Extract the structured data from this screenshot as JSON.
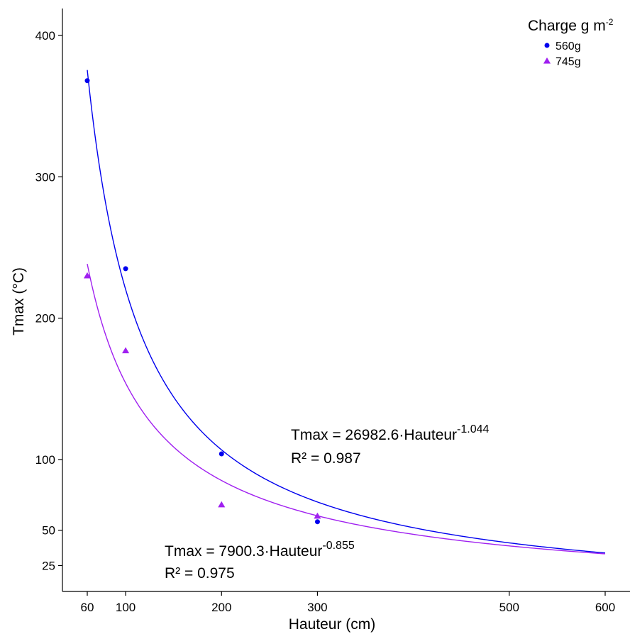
{
  "chart_data": {
    "type": "scatter",
    "title": "",
    "xlabel": "Hauteur (cm)",
    "ylabel": "Tmax (°C)",
    "xlim": [
      55,
      615
    ],
    "ylim": [
      10,
      420
    ],
    "x_ticks": [
      60,
      100,
      200,
      300,
      500,
      600
    ],
    "y_ticks": [
      25,
      50,
      100,
      200,
      300,
      400
    ],
    "grid": false,
    "legend": {
      "title_base": "Charge g m",
      "title_exp": "-2",
      "placement": "top-right"
    },
    "series": [
      {
        "name": "560g",
        "color": "#0000ee",
        "marker": "circle",
        "x": [
          60,
          100,
          200,
          300
        ],
        "y": [
          368,
          235,
          104,
          56
        ],
        "fit": {
          "a": 26982.6,
          "b": -1.044,
          "x_range": [
            60,
            600
          ]
        }
      },
      {
        "name": "745g",
        "color": "#a020f0",
        "marker": "triangle",
        "x": [
          60,
          100,
          200,
          300
        ],
        "y": [
          230,
          177,
          68,
          60
        ],
        "fit": {
          "a": 7900.3,
          "b": -0.855,
          "x_range": [
            60,
            600
          ]
        }
      }
    ],
    "annotations": [
      {
        "eq_base": "Tmax = 26982.6·Hauteur",
        "eq_exp": "-1.044",
        "r2": "R² = 0.987"
      },
      {
        "eq_base": "Tmax = 7900.3·Hauteur",
        "eq_exp": "-0.855",
        "r2": "R² = 0.975"
      }
    ]
  }
}
